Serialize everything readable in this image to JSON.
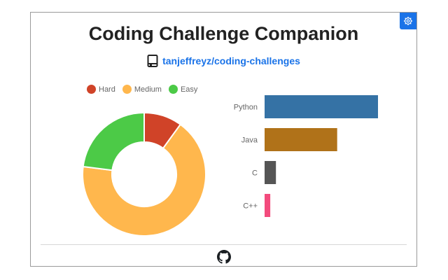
{
  "header": {
    "title": "Coding Challenge Companion",
    "repo_label": "tanjeffreyz/coding-challenges",
    "repo_icon": "book-icon",
    "settings_icon": "gear-icon"
  },
  "footer": {
    "icon": "github-icon"
  },
  "colors": {
    "accent": "#1a73e8",
    "hard": "#d04328",
    "medium": "#ffb74d",
    "easy": "#4cca47",
    "python": "#3572a5",
    "java": "#b07219",
    "c": "#555555",
    "cpp": "#f34b7d"
  },
  "chart_data": [
    {
      "type": "pie",
      "variant": "doughnut",
      "legend": [
        "Hard",
        "Medium",
        "Easy"
      ],
      "legend_position": "top",
      "categories": [
        "Hard",
        "Medium",
        "Easy"
      ],
      "values": [
        10,
        67,
        23
      ],
      "colors": [
        "#d04328",
        "#ffb74d",
        "#4cca47"
      ]
    },
    {
      "type": "bar",
      "orientation": "horizontal",
      "categories": [
        "Python",
        "Java",
        "C",
        "C++"
      ],
      "values": [
        100,
        64,
        10,
        5
      ],
      "colors": [
        "#3572a5",
        "#b07219",
        "#555555",
        "#f34b7d"
      ],
      "xlim": [
        0,
        100
      ],
      "grid": false
    }
  ]
}
